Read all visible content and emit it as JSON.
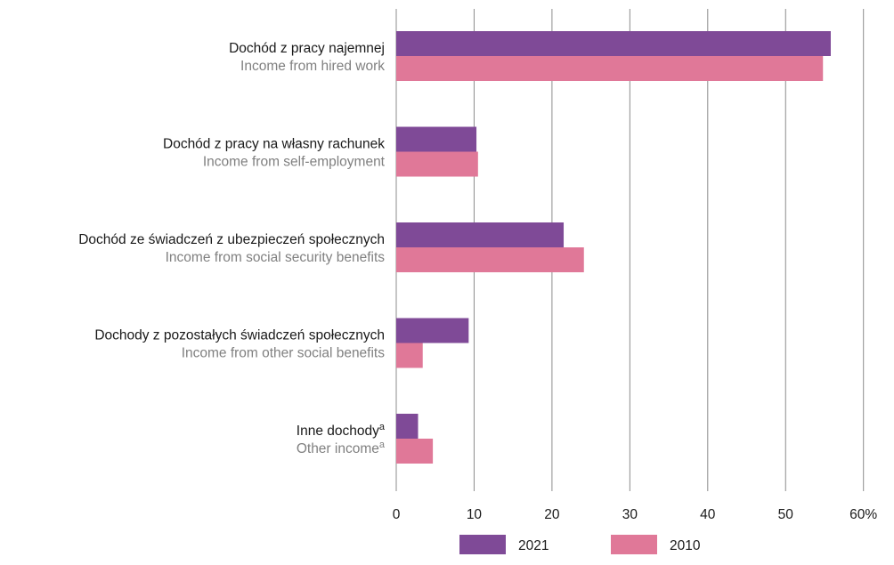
{
  "chart_data": {
    "type": "bar",
    "orientation": "horizontal",
    "categories": [
      {
        "label_pl": "Dochód z pracy najemnej",
        "label_en": "Income from hired work",
        "sup": ""
      },
      {
        "label_pl": "Dochód z pracy na własny rachunek",
        "label_en": "Income from self-employment",
        "sup": ""
      },
      {
        "label_pl": "Dochód ze świadczeń z ubezpieczeń społecznych",
        "label_en": "Income from social security benefits",
        "sup": ""
      },
      {
        "label_pl": "Dochody z pozostałych świadczeń społecznych",
        "label_en": "Income from other social benefits",
        "sup": ""
      },
      {
        "label_pl": "Inne dochody",
        "label_en": "Other income",
        "sup": "a"
      }
    ],
    "series": [
      {
        "name": "2021",
        "color": "#7f4a97",
        "values": [
          55.8,
          10.3,
          21.5,
          9.3,
          2.8
        ]
      },
      {
        "name": "2010",
        "color": "#e07898",
        "values": [
          54.8,
          10.5,
          24.1,
          3.4,
          4.7
        ]
      }
    ],
    "xlim": [
      0,
      60
    ],
    "ticks": [
      "0",
      "10",
      "20",
      "30",
      "40",
      "50",
      "60%"
    ],
    "grid": true,
    "legend": "bottom"
  }
}
